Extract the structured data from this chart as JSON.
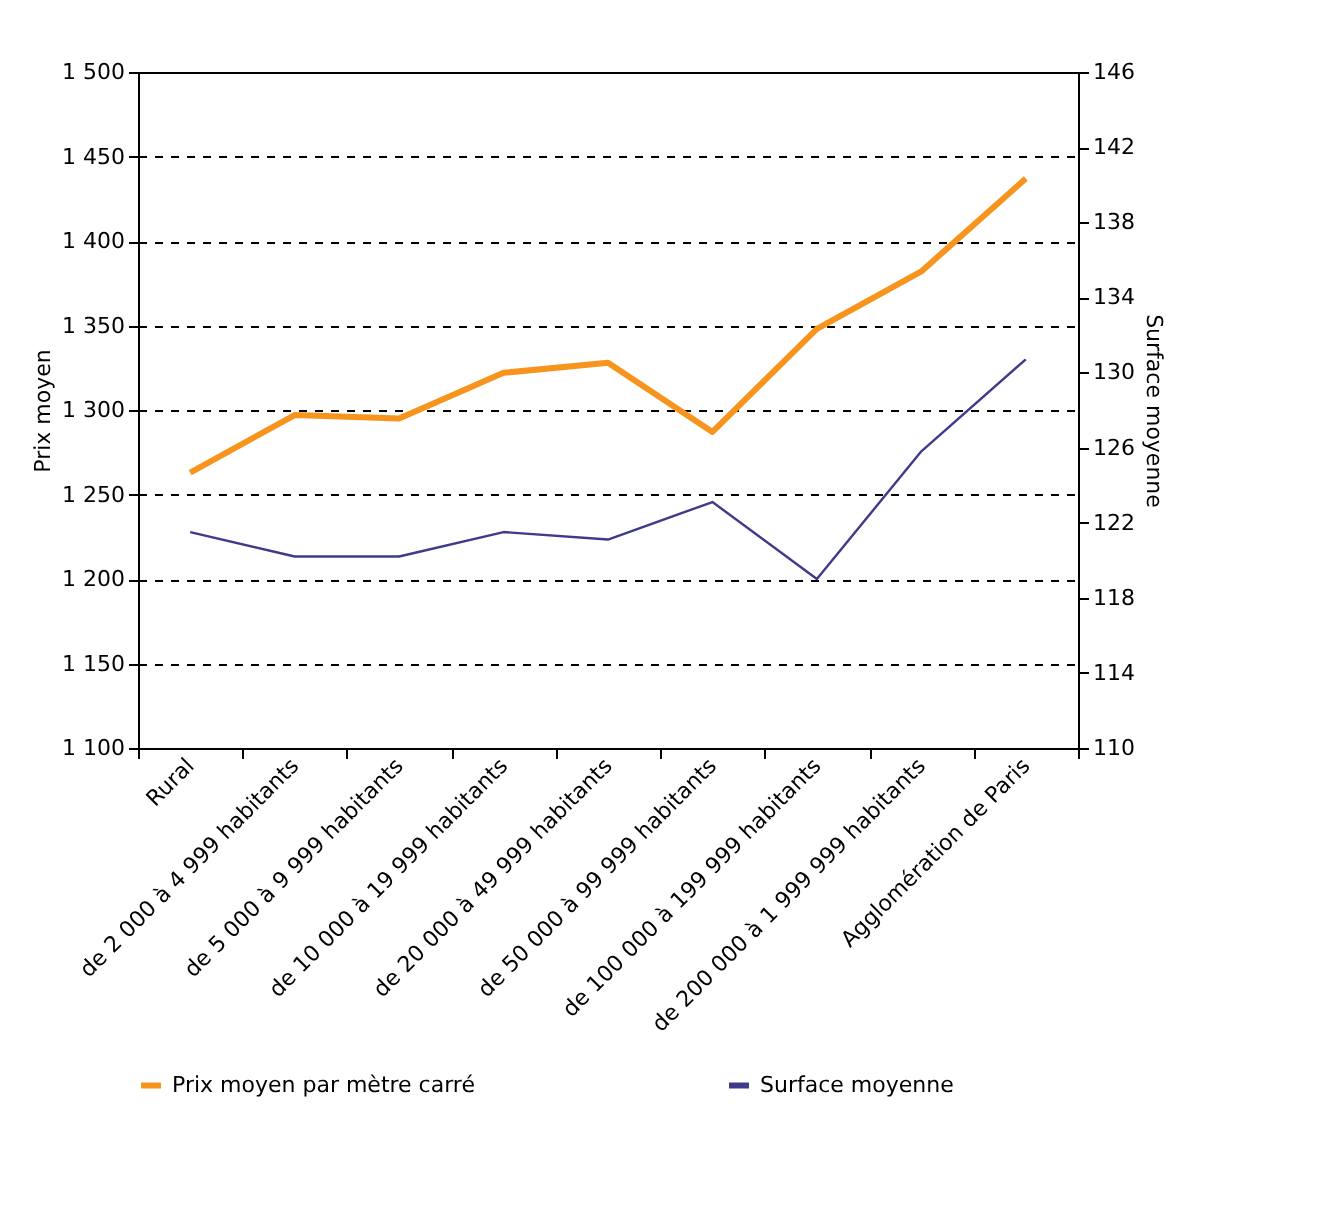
{
  "chart_data": {
    "type": "line",
    "ylabel": "Prix moyen",
    "y2label": "Surface moyenne",
    "categories": [
      "Rural",
      "de 2 000 à 4 999 habitants",
      "de 5 000 à 9 999 habitants",
      "de 10 000 à 19 999 habitants",
      "de 20 000 à 49 999 habitants",
      "de 50 000 à 99 999 habitants",
      "de 100 000 à 199 999 habitants",
      "de 200 000 à 1 999 999 habitants",
      "Agglomération de Paris"
    ],
    "series": [
      {
        "name": "Prix moyen par mètre carré",
        "color": "#f7941d",
        "values": [
          1263,
          1297,
          1295,
          1322,
          1328,
          1287,
          1348,
          1382,
          1437
        ]
      },
      {
        "name": "Surface moyenne",
        "color": "#3f3a8a",
        "axis": "y2",
        "values": [
          121.5,
          120.2,
          120.2,
          121.5,
          121.1,
          123.1,
          119.0,
          125.8,
          130.7
        ]
      }
    ],
    "ylim": [
      1100,
      1500
    ],
    "yticks": [
      {
        "value": 1100,
        "label": "1 100"
      },
      {
        "value": 1150,
        "label": "1 150"
      },
      {
        "value": 1200,
        "label": "1 200"
      },
      {
        "value": 1250,
        "label": "1 250"
      },
      {
        "value": 1300,
        "label": "1 300"
      },
      {
        "value": 1350,
        "label": "1 350"
      },
      {
        "value": 1400,
        "label": "1 400"
      },
      {
        "value": 1450,
        "label": "1 450"
      },
      {
        "value": 1500,
        "label": "1 500"
      }
    ],
    "y2lim": [
      110,
      146
    ],
    "y2ticks": [
      110,
      114,
      118,
      122,
      126,
      130,
      134,
      138,
      142,
      146
    ],
    "grid": "y",
    "legend": "bottom"
  }
}
